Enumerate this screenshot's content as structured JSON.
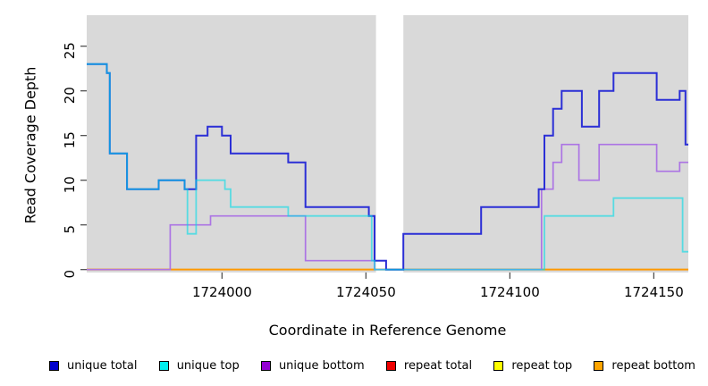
{
  "figure": {
    "x_axis_title": "Coordinate in Reference Genome",
    "y_axis_title": "Read Coverage Depth"
  },
  "chart_data": {
    "type": "line",
    "subtype": "step-coverage",
    "title": "",
    "xlabel": "Coordinate in Reference Genome",
    "ylabel": "Read Coverage Depth",
    "x_range": [
      1723953,
      1724162
    ],
    "y_range": [
      0,
      28.5
    ],
    "x_ticks": [
      1724000,
      1724050,
      1724100,
      1724150
    ],
    "y_ticks": [
      0,
      5,
      10,
      15,
      20,
      25
    ],
    "grid": false,
    "plot_bg_color": "#D9D9D9",
    "gap_region": {
      "start": 1724053.5,
      "end": 1724063
    },
    "legend_position": "bottom",
    "series": [
      {
        "name": "unique total",
        "swatch": "#0000CC",
        "line": "#2B2FD6",
        "line_width": 2,
        "line_opacity": 1,
        "steps": [
          [
            1723953,
            23
          ],
          [
            1723960,
            22
          ],
          [
            1723961,
            13
          ],
          [
            1723967,
            9
          ],
          [
            1723978,
            10
          ],
          [
            1723987,
            9
          ],
          [
            1723991,
            15
          ],
          [
            1723995,
            16
          ],
          [
            1724000,
            15
          ],
          [
            1724003,
            13
          ],
          [
            1724023,
            12
          ],
          [
            1724029,
            7
          ],
          [
            1724051,
            6
          ],
          [
            1724053,
            1
          ],
          [
            1724057,
            0
          ],
          [
            1724063,
            4
          ],
          [
            1724090,
            7
          ],
          [
            1724110,
            9
          ],
          [
            1724112,
            15
          ],
          [
            1724115,
            18
          ],
          [
            1724118,
            20
          ],
          [
            1724125,
            16
          ],
          [
            1724131,
            20
          ],
          [
            1724136,
            22
          ],
          [
            1724151,
            19
          ],
          [
            1724159,
            20
          ],
          [
            1724161,
            14
          ]
        ]
      },
      {
        "name": "unique top",
        "swatch": "#00EEEE",
        "line": "#00DCE8",
        "line_width": 1.8,
        "line_opacity": 0.6,
        "steps": [
          [
            1723953,
            23
          ],
          [
            1723960,
            22
          ],
          [
            1723961,
            13
          ],
          [
            1723967,
            9
          ],
          [
            1723978,
            10
          ],
          [
            1723987,
            9
          ],
          [
            1723988,
            4
          ],
          [
            1723991,
            10
          ],
          [
            1724001,
            9
          ],
          [
            1724003,
            7
          ],
          [
            1724023,
            6
          ],
          [
            1724052,
            1
          ],
          [
            1724053,
            0
          ],
          [
            1724112,
            6
          ],
          [
            1724136,
            8
          ],
          [
            1724160,
            2
          ]
        ]
      },
      {
        "name": "unique bottom",
        "swatch": "#9400D3",
        "line": "#AC74E4",
        "line_width": 1.7,
        "line_opacity": 1,
        "steps": [
          [
            1723953,
            0
          ],
          [
            1723982,
            5
          ],
          [
            1723996,
            6
          ],
          [
            1724029,
            1
          ],
          [
            1724053,
            0
          ],
          [
            1724111,
            9
          ],
          [
            1724115,
            12
          ],
          [
            1724118,
            14
          ],
          [
            1724124,
            10
          ],
          [
            1724131,
            14
          ],
          [
            1724151,
            11
          ],
          [
            1724159,
            12
          ]
        ]
      },
      {
        "name": "repeat total",
        "swatch": "#EE0000",
        "line": "#CC2020",
        "line_width": 1.6,
        "line_opacity": 1,
        "steps": [
          [
            1723953,
            0
          ]
        ]
      },
      {
        "name": "repeat top",
        "swatch": "#FFFF00",
        "line": "#FFFF00",
        "line_width": 1.6,
        "line_opacity": 1,
        "steps": [
          [
            1723953,
            0
          ]
        ]
      },
      {
        "name": "repeat bottom",
        "swatch": "#FFA500",
        "line": "#FF9800",
        "line_width": 1.9,
        "line_opacity": 1,
        "steps": [
          [
            1723953,
            0
          ]
        ]
      }
    ],
    "draw_order": [
      3,
      4,
      5,
      2,
      0,
      1
    ]
  }
}
